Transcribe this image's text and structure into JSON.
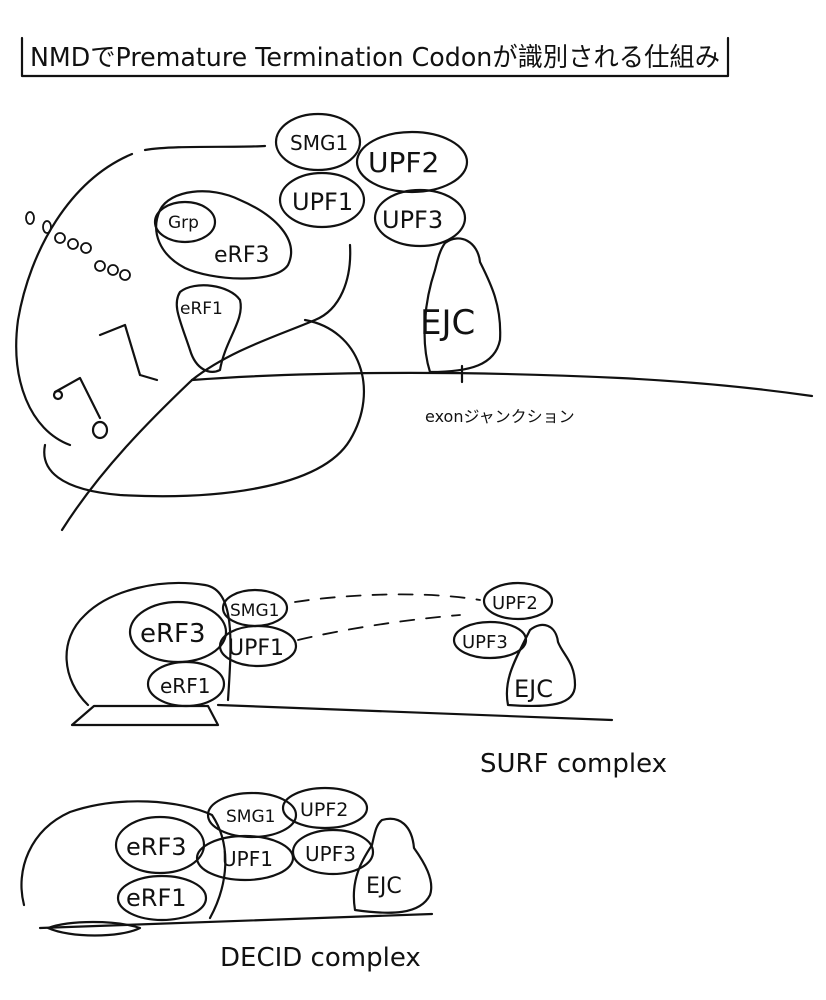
{
  "title": "NMDでPremature Termination Codonが識別される仕組み",
  "panel1": {
    "ribosome_labels": {
      "grp": "Grp",
      "erf3": "eRF3",
      "erf1": "eRF1"
    },
    "proteins": {
      "smg1": "SMG1",
      "upf1": "UPF1",
      "upf2": "UPF2",
      "upf3": "UPF3",
      "ejc": "EJC"
    },
    "junction_label": "exonジャンクション"
  },
  "panel2": {
    "labels": {
      "erf3": "eRF3",
      "erf1": "eRF1",
      "smg1": "SMG1",
      "upf1": "UPF1",
      "upf2": "UPF2",
      "upf3": "UPF3",
      "ejc": "EJC"
    },
    "caption": "SURF complex"
  },
  "panel3": {
    "labels": {
      "erf3": "eRF3",
      "erf1": "eRF1",
      "smg1": "SMG1",
      "upf1": "UPF1",
      "upf2": "UPF2",
      "upf3": "UPF3",
      "ejc": "EJC"
    },
    "caption": "DECID complex"
  }
}
